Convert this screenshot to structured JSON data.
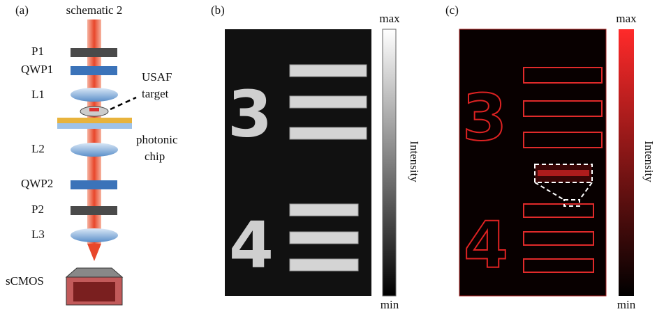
{
  "panel_a": {
    "label": "(a)",
    "title": "schematic 2",
    "components": [
      "P1",
      "QWP1",
      "L1",
      "L2",
      "QWP2",
      "P2",
      "L3",
      "sCMOS"
    ],
    "target_label": [
      "USAF",
      "target"
    ],
    "chip_label": [
      "photonic",
      "chip"
    ]
  },
  "panel_b": {
    "label": "(b)",
    "max": "max",
    "min": "min",
    "colorbar_label": "Intensity",
    "digits": [
      "3",
      "4"
    ]
  },
  "panel_c": {
    "label": "(c)",
    "max": "max",
    "min": "min",
    "colorbar_label": "Intensity",
    "digits": [
      "3",
      "4"
    ]
  }
}
